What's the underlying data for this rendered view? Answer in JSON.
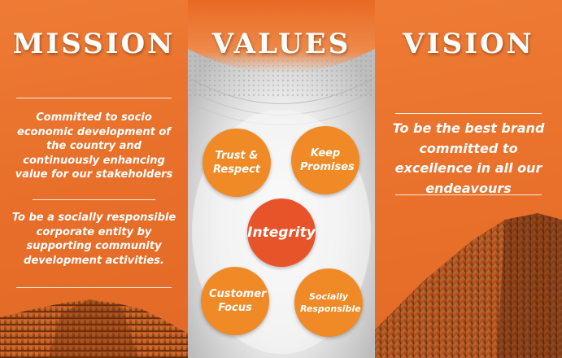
{
  "mission": {
    "title": "MISSION",
    "text1": "Committed to socio economic development of the country and continuously enhancing value for our stakeholders",
    "text2": "To be a socially responsible corporate entity by supporting community development activities."
  },
  "values": {
    "title": "VALUES",
    "items": [
      "Trust & Respect",
      "Keep Promises",
      "Integrity",
      "Customer Focus",
      "Socially Responsible"
    ]
  },
  "vision": {
    "title": "VISION",
    "text": "To be the best brand committed to excellence in all our endeavours"
  },
  "colors": {
    "orange": "#e9702a",
    "circle_orange": "#f08a26",
    "circle_center": "#e8542a",
    "white": "#ffffff"
  }
}
